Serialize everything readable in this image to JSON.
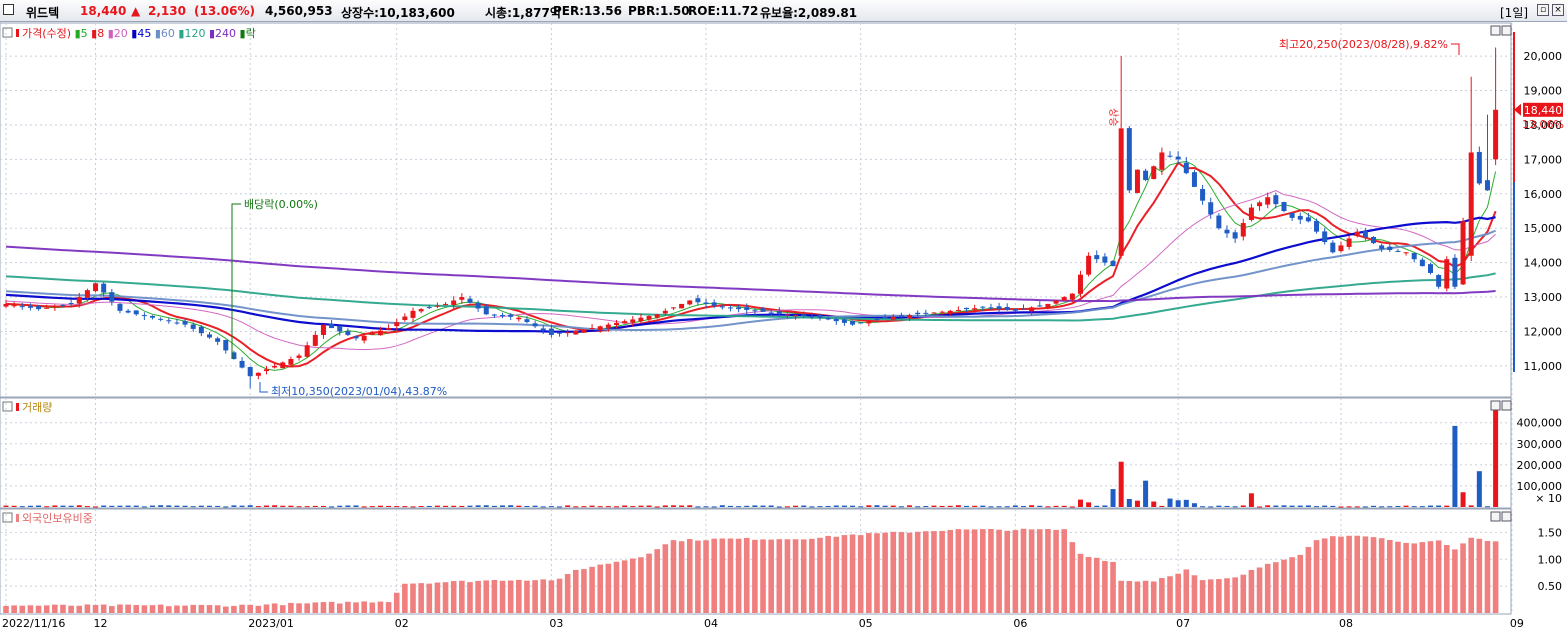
{
  "header": {
    "stock_name": "위드텍",
    "price": "18,440",
    "change_arrow": "▲",
    "change": "2,130",
    "change_pct": "(13.06%)",
    "volume": "4,560,953",
    "shares_listed": "상장수:10,183,600",
    "market_cap": "시총:1,877억",
    "per": "PER:13.56",
    "pbr": "PBR:1.50",
    "roe": "ROE:11.72",
    "float_ratio": "유보율:2,089.81",
    "period": "[1일]",
    "colors": {
      "up": "#e8151b",
      "down": "#1f5cc4"
    }
  },
  "price_panel": {
    "legend_title": "가격(수정)",
    "legend_items": [
      {
        "label": "5",
        "color": "#22aa22"
      },
      {
        "label": "8",
        "color": "#e8151b"
      },
      {
        "label": "20",
        "color": "#d060c0"
      },
      {
        "label": "45",
        "color": "#0000cc"
      },
      {
        "label": "60",
        "color": "#6a8ec8"
      },
      {
        "label": "120",
        "color": "#2aa58a"
      },
      {
        "label": "240",
        "color": "#7b2fc0"
      },
      {
        "label": "락",
        "color": "#117711"
      }
    ],
    "high_annotation": "최고20,250(2023/08/28),9.82%",
    "low_annotation": "최저10,350(2023/01/04),43.87%",
    "dividend_annotation": "배당락(0.00%)",
    "surge_annotation": "상승",
    "current_price_tag": "18,440",
    "current_pct_tag": "13.06%"
  },
  "volume_panel": {
    "title": "거래량",
    "unit_label": "× 10"
  },
  "foreign_panel": {
    "title": "외국인보유비중"
  },
  "chart_data": [
    {
      "type": "candlestick",
      "title": "가격(수정)",
      "ylim": [
        10300,
        20700
      ],
      "yticks": [
        11000,
        12000,
        13000,
        14000,
        15000,
        16000,
        17000,
        18000,
        19000,
        20000
      ],
      "ytick_labels": [
        "11,000",
        "12,000",
        "13,000",
        "14,000",
        "15,000",
        "16,000",
        "17,000",
        "18,000",
        "19,000",
        "20,000"
      ],
      "xtick_labels": [
        "2022/11/16",
        "12",
        "2023/01",
        "02",
        "03",
        "04",
        "05",
        "06",
        "07",
        "08",
        "09"
      ],
      "xtick_index": [
        0,
        11,
        30,
        48,
        67,
        86,
        105,
        124,
        144,
        164,
        185
      ],
      "anchors_close": [
        [
          0,
          12800
        ],
        [
          4,
          12650
        ],
        [
          8,
          12800
        ],
        [
          11,
          13400
        ],
        [
          14,
          12600
        ],
        [
          18,
          12400
        ],
        [
          22,
          12200
        ],
        [
          26,
          11700
        ],
        [
          30,
          10700
        ],
        [
          33,
          11000
        ],
        [
          36,
          11300
        ],
        [
          39,
          12200
        ],
        [
          43,
          11800
        ],
        [
          47,
          12100
        ],
        [
          50,
          12600
        ],
        [
          54,
          12800
        ],
        [
          56,
          13000
        ],
        [
          59,
          12500
        ],
        [
          63,
          12400
        ],
        [
          67,
          11900
        ],
        [
          72,
          12100
        ],
        [
          76,
          12300
        ],
        [
          80,
          12500
        ],
        [
          84,
          12900
        ],
        [
          88,
          12700
        ],
        [
          92,
          12600
        ],
        [
          96,
          12500
        ],
        [
          100,
          12400
        ],
        [
          104,
          12200
        ],
        [
          108,
          12400
        ],
        [
          112,
          12500
        ],
        [
          116,
          12600
        ],
        [
          120,
          12700
        ],
        [
          124,
          12600
        ],
        [
          128,
          12800
        ],
        [
          131,
          13100
        ],
        [
          133,
          14200
        ],
        [
          135,
          14000
        ],
        [
          136,
          13900
        ],
        [
          137,
          17900
        ],
        [
          138,
          16100
        ],
        [
          139,
          16700
        ],
        [
          140,
          16400
        ],
        [
          142,
          17200
        ],
        [
          144,
          17000
        ],
        [
          146,
          16200
        ],
        [
          149,
          15000
        ],
        [
          151,
          14700
        ],
        [
          153,
          15600
        ],
        [
          155,
          15900
        ],
        [
          158,
          15300
        ],
        [
          160,
          15200
        ],
        [
          163,
          14300
        ],
        [
          166,
          14900
        ],
        [
          169,
          14400
        ],
        [
          172,
          14300
        ],
        [
          175,
          13700
        ],
        [
          176,
          13300
        ],
        [
          177,
          14100
        ],
        [
          178,
          13300
        ],
        [
          179,
          15200
        ],
        [
          180,
          17200
        ],
        [
          181,
          16300
        ],
        [
          182,
          16100
        ],
        [
          183,
          18440
        ]
      ],
      "high_point": {
        "index": 183,
        "value": 20250,
        "date": "2023/08/28"
      },
      "low_point": {
        "index": 30,
        "value": 10350,
        "date": "2023/01/04"
      }
    },
    {
      "type": "bar",
      "title": "거래량",
      "ylim": [
        0,
        470000
      ],
      "yticks": [
        100000,
        200000,
        300000,
        400000
      ],
      "ytick_labels": [
        "100,000",
        "200,000",
        "300,000",
        "400,000"
      ],
      "spikes": [
        {
          "index": 132,
          "value": 35000
        },
        {
          "index": 133,
          "value": 22000
        },
        {
          "index": 136,
          "value": 85000
        },
        {
          "index": 137,
          "value": 215000
        },
        {
          "index": 138,
          "value": 38000
        },
        {
          "index": 139,
          "value": 30000
        },
        {
          "index": 140,
          "value": 125000
        },
        {
          "index": 141,
          "value": 26000
        },
        {
          "index": 143,
          "value": 40000
        },
        {
          "index": 144,
          "value": 32000
        },
        {
          "index": 145,
          "value": 34000
        },
        {
          "index": 146,
          "value": 18000
        },
        {
          "index": 153,
          "value": 65000
        },
        {
          "index": 178,
          "value": 385000
        },
        {
          "index": 179,
          "value": 70000
        },
        {
          "index": 181,
          "value": 170000
        },
        {
          "index": 183,
          "value": 460000
        }
      ]
    },
    {
      "type": "bar",
      "title": "외국인보유비중",
      "ylim": [
        0,
        1.75
      ],
      "yticks": [
        0.5,
        1.0,
        1.5
      ],
      "ytick_labels": [
        "0.50",
        "1.00",
        "1.50"
      ],
      "anchors": [
        [
          0,
          0.14
        ],
        [
          28,
          0.14
        ],
        [
          47,
          0.22
        ],
        [
          49,
          0.55
        ],
        [
          62,
          0.62
        ],
        [
          68,
          0.62
        ],
        [
          70,
          0.8
        ],
        [
          78,
          1.05
        ],
        [
          82,
          1.35
        ],
        [
          88,
          1.38
        ],
        [
          96,
          1.38
        ],
        [
          100,
          1.4
        ],
        [
          103,
          1.45
        ],
        [
          110,
          1.5
        ],
        [
          116,
          1.55
        ],
        [
          124,
          1.55
        ],
        [
          130,
          1.55
        ],
        [
          132,
          1.1
        ],
        [
          136,
          0.95
        ],
        [
          137,
          0.6
        ],
        [
          141,
          0.6
        ],
        [
          145,
          0.8
        ],
        [
          147,
          0.6
        ],
        [
          151,
          0.65
        ],
        [
          155,
          0.92
        ],
        [
          159,
          1.1
        ],
        [
          161,
          1.35
        ],
        [
          163,
          1.45
        ],
        [
          168,
          1.4
        ],
        [
          172,
          1.3
        ],
        [
          176,
          1.35
        ],
        [
          178,
          1.18
        ],
        [
          180,
          1.4
        ],
        [
          183,
          1.32
        ]
      ]
    }
  ]
}
